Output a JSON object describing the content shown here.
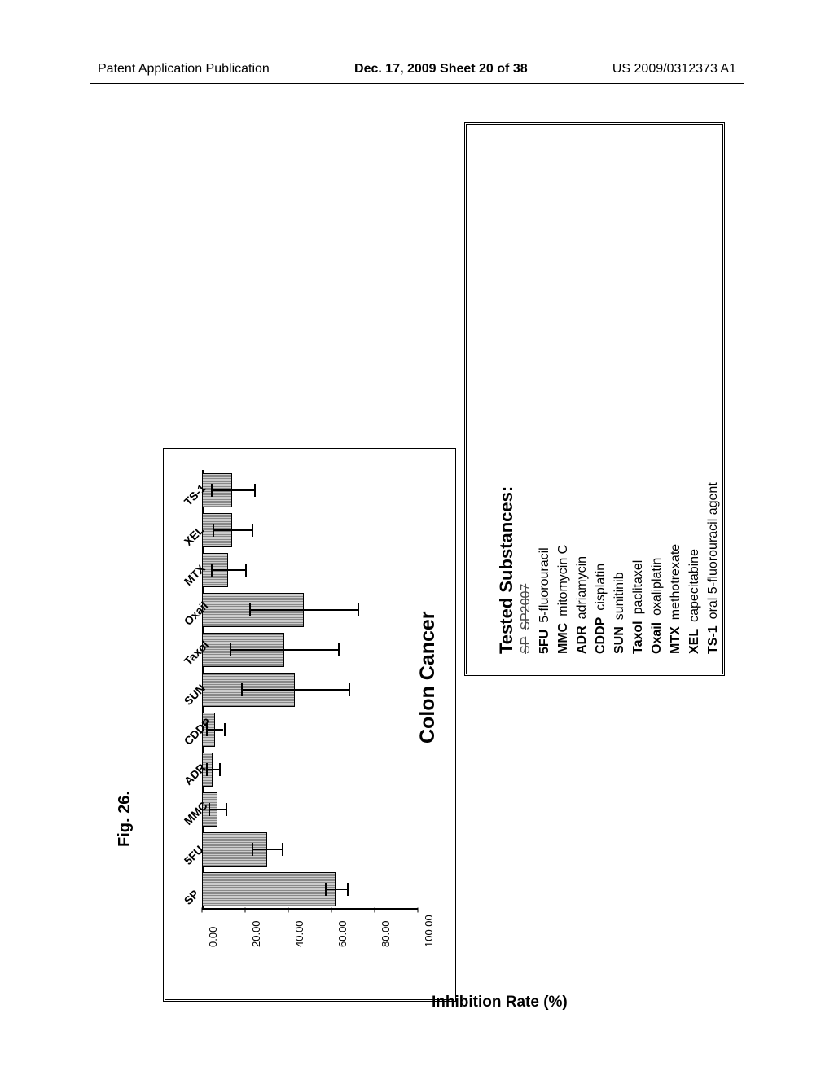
{
  "header": {
    "left": "Patent Application Publication",
    "center": "Dec. 17, 2009  Sheet 20 of 38",
    "right": "US 2009/0312373 A1"
  },
  "figure_label": "Fig. 26.",
  "chart": {
    "type": "bar",
    "title": "Colon Cancer",
    "y_axis_label": "Inhibition Rate (%)",
    "background_color": "#ffffff",
    "bar_fill": "#bbbbbb",
    "bar_border": "#000000",
    "ylim": [
      0,
      100
    ],
    "yticks": [
      0.0,
      20.0,
      40.0,
      60.0,
      80.0,
      100.0
    ],
    "ytick_labels": [
      "0.00",
      "20.00",
      "40.00",
      "60.00",
      "80.00",
      "100.00"
    ],
    "categories": [
      "SP",
      "5FU",
      "MMC",
      "ADR",
      "CDDP",
      "SUN",
      "Taxol",
      "Oxail",
      "MTX",
      "XEL",
      "TS-1"
    ],
    "values": [
      62,
      30,
      7,
      5,
      6,
      43,
      38,
      47,
      12,
      14,
      14
    ],
    "errors": [
      5,
      7,
      4,
      3,
      4,
      25,
      25,
      25,
      8,
      9,
      10
    ]
  },
  "legend": {
    "title": "Tested Substances:",
    "items": [
      {
        "abbr": "SP",
        "name": "SP2007",
        "struck": true
      },
      {
        "abbr": "5FU",
        "name": "5-fluorouracil"
      },
      {
        "abbr": "MMC",
        "name": "mitomycin C"
      },
      {
        "abbr": "ADR",
        "name": "adriamycin"
      },
      {
        "abbr": "CDDP",
        "name": "cisplatin"
      },
      {
        "abbr": "SUN",
        "name": "sunitinib"
      },
      {
        "abbr": "Taxol",
        "name": "paclitaxel"
      },
      {
        "abbr": "Oxail",
        "name": "oxaliplatin"
      },
      {
        "abbr": "MTX",
        "name": "methotrexate"
      },
      {
        "abbr": "XEL",
        "name": "capecitabine"
      },
      {
        "abbr": "TS-1",
        "name": "oral 5-fluorouracil agent"
      }
    ]
  }
}
